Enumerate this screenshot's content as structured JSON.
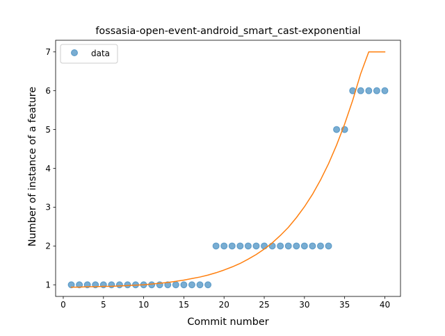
{
  "chart_data": {
    "type": "scatter",
    "title": "fossasia-open-event-android_smart_cast-exponential",
    "xlabel": "Commit number",
    "ylabel": "Number of instance of a feature",
    "xlim": [
      -0.95,
      41.95
    ],
    "ylim": [
      0.7,
      7.3
    ],
    "xticks": [
      0,
      5,
      10,
      15,
      20,
      25,
      30,
      35,
      40
    ],
    "yticks": [
      1,
      2,
      3,
      4,
      5,
      6,
      7
    ],
    "grid": false,
    "legend": {
      "location": "upper-left",
      "entries": [
        "data"
      ]
    },
    "series": [
      {
        "name": "data",
        "kind": "scatter",
        "color": "#1f77b4",
        "x": [
          1,
          2,
          3,
          4,
          5,
          6,
          7,
          8,
          9,
          10,
          11,
          12,
          13,
          14,
          15,
          16,
          17,
          18,
          19,
          20,
          21,
          22,
          23,
          24,
          25,
          26,
          27,
          28,
          29,
          30,
          31,
          32,
          33,
          34,
          35,
          36,
          37,
          38,
          39,
          40
        ],
        "y": [
          1,
          1,
          1,
          1,
          1,
          1,
          1,
          1,
          1,
          1,
          1,
          1,
          1,
          1,
          1,
          1,
          1,
          1,
          2,
          2,
          2,
          2,
          2,
          2,
          2,
          2,
          2,
          2,
          2,
          2,
          2,
          2,
          2,
          5,
          5,
          6,
          6,
          6,
          6,
          6
        ]
      },
      {
        "kind": "line",
        "color": "#ff7f0e",
        "x": [
          1,
          2,
          3,
          4,
          5,
          6,
          7,
          8,
          9,
          10,
          11,
          12,
          13,
          14,
          15,
          16,
          17,
          18,
          19,
          20,
          21,
          22,
          23,
          24,
          25,
          26,
          27,
          28,
          29,
          30,
          31,
          32,
          33,
          34,
          35,
          36,
          37,
          38,
          39,
          40
        ],
        "y": [
          0.94,
          0.94,
          0.95,
          0.95,
          0.96,
          0.96,
          0.97,
          0.98,
          0.99,
          1.0,
          1.02,
          1.04,
          1.06,
          1.09,
          1.12,
          1.16,
          1.2,
          1.25,
          1.31,
          1.38,
          1.46,
          1.55,
          1.66,
          1.78,
          1.92,
          2.08,
          2.27,
          2.48,
          2.73,
          3.01,
          3.33,
          3.7,
          4.12,
          4.6,
          5.14,
          5.75,
          6.44,
          7.0,
          7.0,
          7.0
        ]
      }
    ]
  }
}
